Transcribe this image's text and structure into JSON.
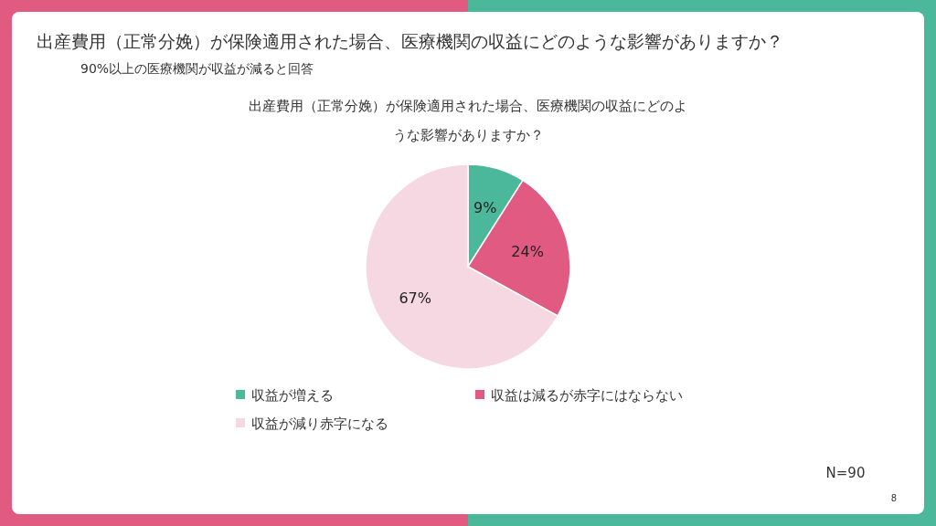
{
  "chart_data": {
    "type": "pie",
    "title": "出産費用（正常分娩）が保険適用された場合、医療機関の収益にどのような影響がありますか？",
    "subtitle": "90%以上の医療機関が収益が減ると回答",
    "annotations": [
      "出産費用（正常分娩）が保険適用された場合、医療機関の収益にどのような影響がありますか？",
      "N=90",
      "8"
    ],
    "categories": [
      "収益が増える",
      "収益は減るが赤字にはならない",
      "収益が減り赤字になる"
    ],
    "values": [
      9,
      24,
      67
    ],
    "colors": [
      "#4bb89c",
      "#e05a82",
      "#f6d8e2"
    ],
    "value_labels": [
      "9%",
      "24%",
      "67%"
    ],
    "legend": "bottom"
  }
}
